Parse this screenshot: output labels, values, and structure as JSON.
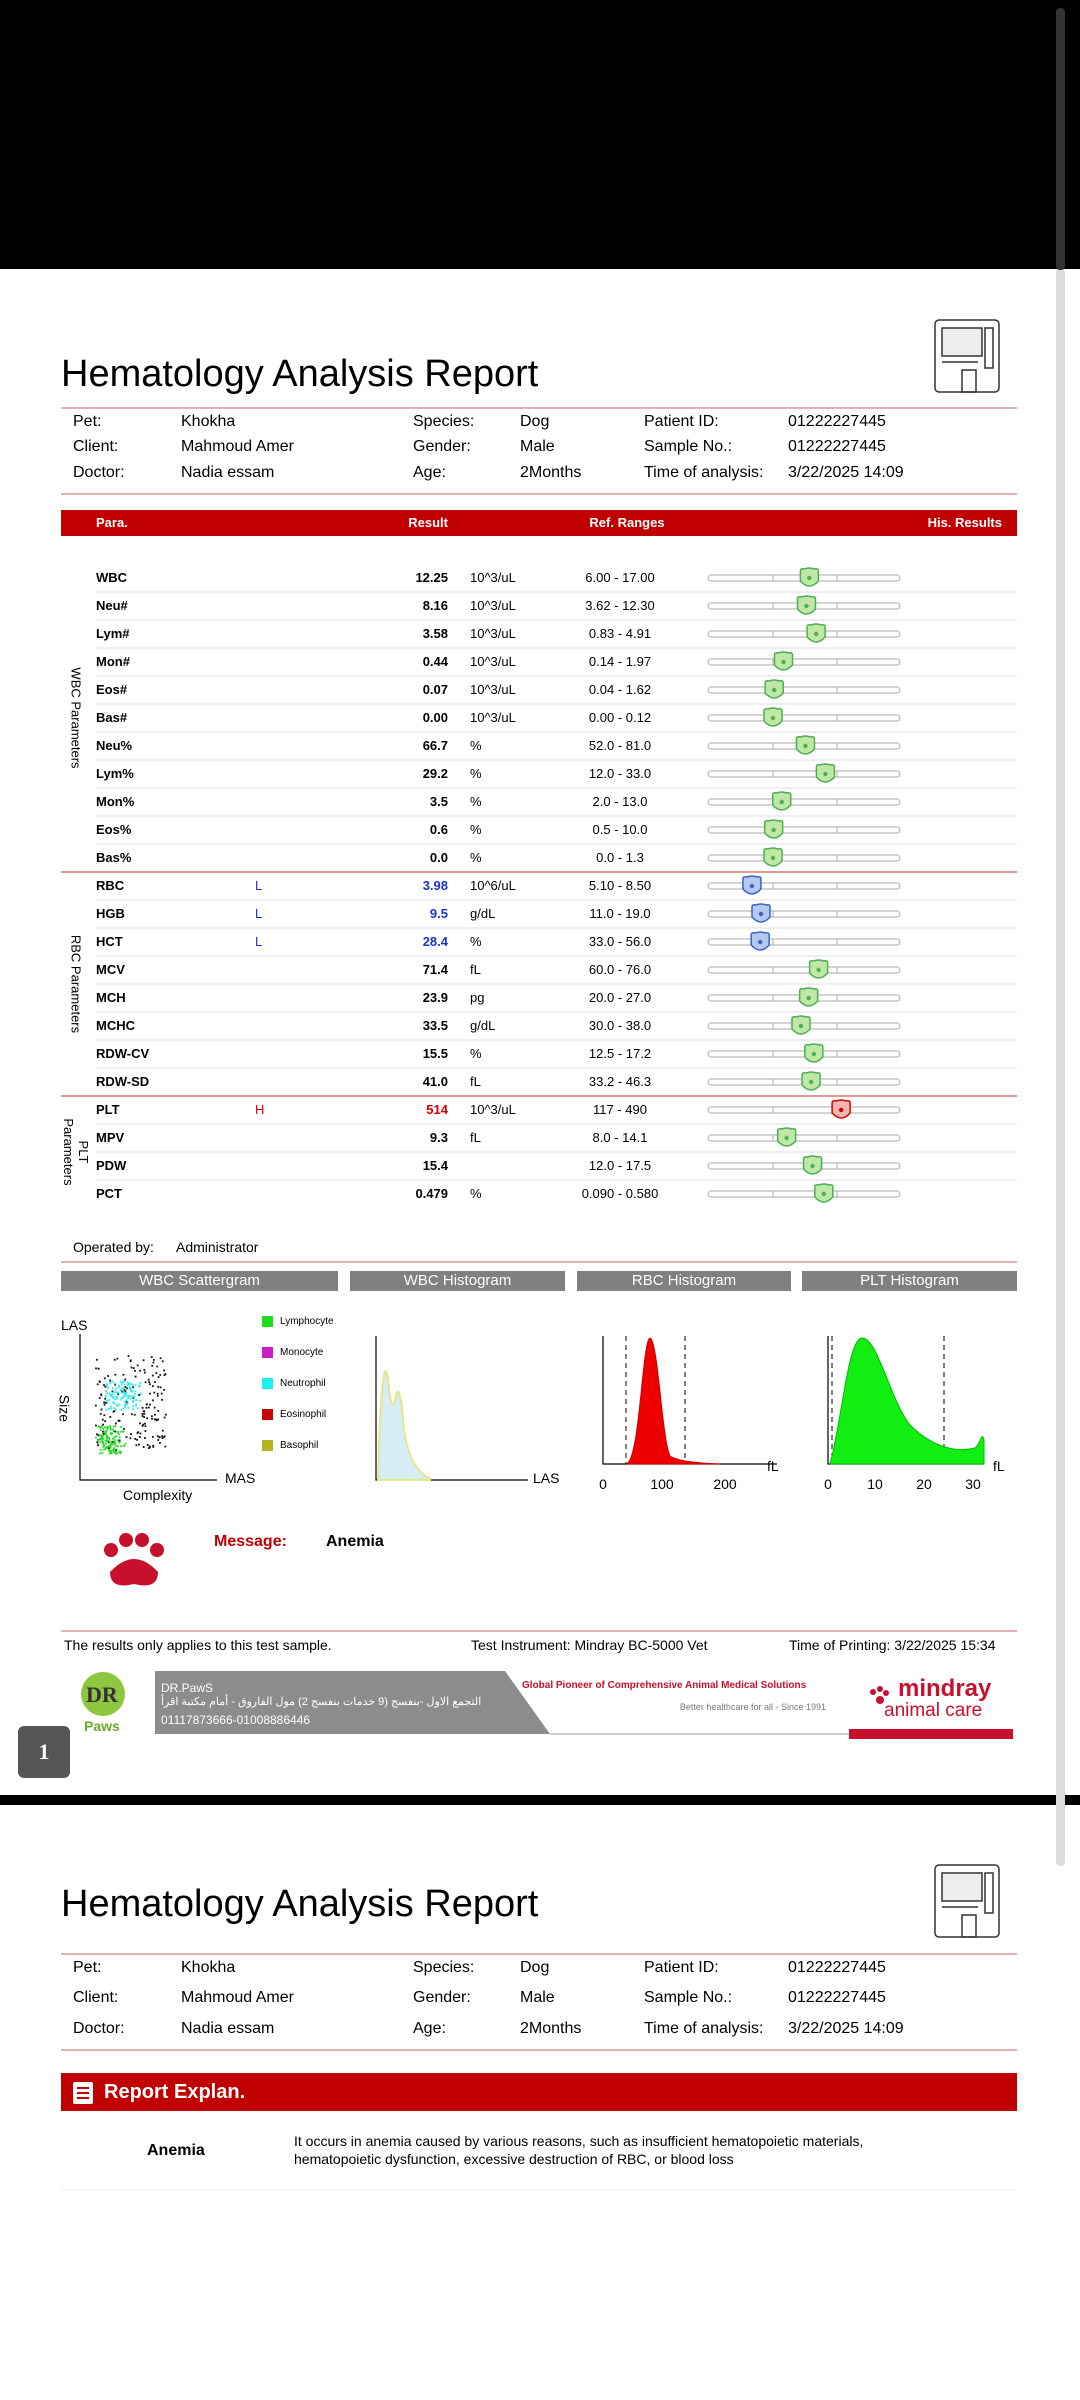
{
  "header": {
    "title": "Hematology Analysis Report",
    "info": [
      [
        {
          "label": "Pet:",
          "value": "Khokha"
        },
        {
          "label": "Species:",
          "value": "Dog"
        },
        {
          "label": "Patient ID:",
          "value": "01222227445"
        }
      ],
      [
        {
          "label": "Client:",
          "value": "Mahmoud Amer"
        },
        {
          "label": "Gender:",
          "value": "Male"
        },
        {
          "label": "Sample No.:",
          "value": "01222227445"
        }
      ],
      [
        {
          "label": "Doctor:",
          "value": "Nadia essam"
        },
        {
          "label": "Age:",
          "value": "2Months"
        },
        {
          "label": "Time of analysis:",
          "value": "3/22/2025 14:09"
        }
      ]
    ]
  },
  "table": {
    "columns": [
      "Para.",
      "Result",
      "Ref. Ranges",
      "His. Results"
    ],
    "groups": [
      {
        "label": "WBC Parameters",
        "rows": [
          {
            "name": "WBC",
            "result": "12.25",
            "unit": "10^3/uL",
            "ref": "6.00 - 17.00"
          },
          {
            "name": "Neu#",
            "result": "8.16",
            "unit": "10^3/uL",
            "ref": "3.62 - 12.30"
          },
          {
            "name": "Lym#",
            "result": "3.58",
            "unit": "10^3/uL",
            "ref": "0.83 - 4.91"
          },
          {
            "name": "Mon#",
            "result": "0.44",
            "unit": "10^3/uL",
            "ref": "0.14 - 1.97"
          },
          {
            "name": "Eos#",
            "result": "0.07",
            "unit": "10^3/uL",
            "ref": "0.04 - 1.62"
          },
          {
            "name": "Bas#",
            "result": "0.00",
            "unit": "10^3/uL",
            "ref": "0.00 - 0.12"
          },
          {
            "name": "Neu%",
            "result": "66.7",
            "unit": "%",
            "ref": "52.0 - 81.0"
          },
          {
            "name": "Lym%",
            "result": "29.2",
            "unit": "%",
            "ref": "12.0 - 33.0"
          },
          {
            "name": "Mon%",
            "result": "3.5",
            "unit": "%",
            "ref": "2.0 - 13.0"
          },
          {
            "name": "Eos%",
            "result": "0.6",
            "unit": "%",
            "ref": "0.5 - 10.0"
          },
          {
            "name": "Bas%",
            "result": "0.0",
            "unit": "%",
            "ref": "0.0 - 1.3"
          }
        ]
      },
      {
        "label": "RBC Parameters",
        "rows": [
          {
            "name": "RBC",
            "flag": "L",
            "result": "3.98",
            "unit": "10^6/uL",
            "ref": "5.10 - 8.50"
          },
          {
            "name": "HGB",
            "flag": "L",
            "result": "9.5",
            "unit": "g/dL",
            "ref": "11.0 - 19.0"
          },
          {
            "name": "HCT",
            "flag": "L",
            "result": "28.4",
            "unit": "%",
            "ref": "33.0 - 56.0"
          },
          {
            "name": "MCV",
            "result": "71.4",
            "unit": "fL",
            "ref": "60.0 - 76.0"
          },
          {
            "name": "MCH",
            "result": "23.9",
            "unit": "pg",
            "ref": "20.0 - 27.0"
          },
          {
            "name": "MCHC",
            "result": "33.5",
            "unit": "g/dL",
            "ref": "30.0 - 38.0"
          },
          {
            "name": "RDW-CV",
            "result": "15.5",
            "unit": "%",
            "ref": "12.5 - 17.2"
          },
          {
            "name": "RDW-SD",
            "result": "41.0",
            "unit": "fL",
            "ref": "33.2 - 46.3"
          }
        ]
      },
      {
        "label": "PLT Parameters",
        "rows": [
          {
            "name": "PLT",
            "flag": "H",
            "result": "514",
            "unit": "10^3/uL",
            "ref": "117 - 490"
          },
          {
            "name": "MPV",
            "result": "9.3",
            "unit": "fL",
            "ref": "8.0 - 14.1"
          },
          {
            "name": "PDW",
            "result": "15.4",
            "ref": "12.0 - 17.5"
          },
          {
            "name": "PCT",
            "result": "0.479",
            "unit": "%",
            "ref": "0.090 - 0.580"
          }
        ]
      }
    ]
  },
  "operator": {
    "label": "Operated by:",
    "value": "Administrator"
  },
  "charts": {
    "wbc_scatter": {
      "title": "WBC Scattergram",
      "y_label": "LAS",
      "side_label": "Size",
      "x_label": "MAS",
      "x_title": "Complexity",
      "legend": [
        {
          "name": "Lymphocyte",
          "color": "#1fdc1f"
        },
        {
          "name": "Monocyte",
          "color": "#c81ec8"
        },
        {
          "name": "Neutrophil",
          "color": "#1eeeee"
        },
        {
          "name": "Eosinophil",
          "color": "#c80000"
        },
        {
          "name": "Basophil",
          "color": "#b4b41e"
        }
      ]
    },
    "wbc_histogram": {
      "title": "WBC Histogram",
      "x_label": "LAS"
    },
    "rbc_histogram": {
      "title": "RBC Histogram",
      "ticks": [
        "0",
        "100",
        "200"
      ],
      "unit": "fL"
    },
    "plt_histogram": {
      "title": "PLT Histogram",
      "ticks": [
        "0",
        "10",
        "20",
        "30"
      ],
      "unit": "fL"
    }
  },
  "message": {
    "label": "Message:",
    "value": "Anemia"
  },
  "footer": {
    "note": "The results only applies to this test sample.",
    "instrument": "Test Instrument: Mindray BC-5000 Vet",
    "printed": "Time of Printing: 3/22/2025 15:34"
  },
  "banner": {
    "logo_top": "DR",
    "logo_bottom": "Paws",
    "clinic": "DR.PawS",
    "address": "التجمع الاول -بنفسج (9 خدمات بنفسج 2) مول الفاروق - أمام مكتبة اقرأ",
    "phones": "01117873666-01008886446",
    "slogan": "Global Pioneer of Comprehensive Animal Medical Solutions",
    "tagline": "Better healthcare for all  -  Since 1991",
    "brand": "mindray",
    "brand_sub": "animal care"
  },
  "page_number": "1",
  "explanation": {
    "heading": "Report Explan.",
    "items": [
      {
        "term": "Anemia",
        "text": "It occurs in anemia caused by various reasons, such as insufficient hematopoietic materials, hematopoietic dysfunction, excessive destruction of RBC, or blood loss"
      }
    ]
  }
}
